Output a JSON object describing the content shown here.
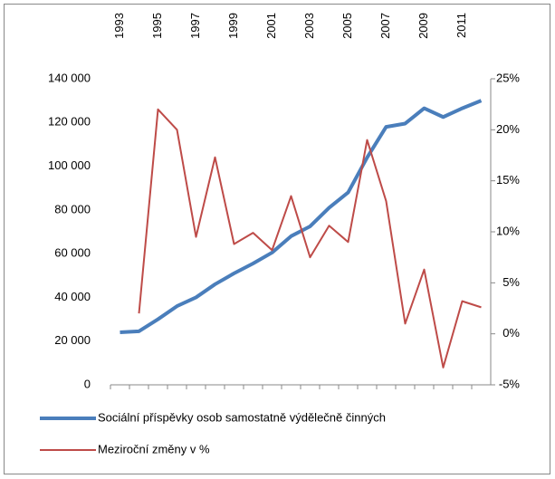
{
  "chart_data": {
    "type": "line",
    "categories": [
      "1993",
      null,
      "1995",
      null,
      "1997",
      null,
      "1999",
      null,
      "2001",
      null,
      "2003",
      null,
      "2005",
      null,
      "2007",
      null,
      "2009",
      null,
      "2011",
      null
    ],
    "series": [
      {
        "name": "Sociální příspěvky osob samostatně výdělečně činných",
        "color": "#4a7ebb",
        "axis": "y",
        "values": [
          24000,
          24500,
          30000,
          36000,
          40000,
          46000,
          51000,
          55500,
          60500,
          68000,
          72500,
          81000,
          88000,
          104000,
          118000,
          119500,
          126500,
          122500,
          126500,
          130000
        ]
      },
      {
        "name": "Meziroční změny v %",
        "color": "#be4b48",
        "axis": "y2",
        "values": [
          null,
          2,
          22,
          20,
          9.5,
          17.3,
          8.8,
          9.9,
          8.2,
          13.5,
          7.5,
          10.6,
          9.0,
          19.0,
          13,
          1.0,
          6.3,
          -3.3,
          3.2,
          2.6
        ]
      }
    ],
    "ylim": [
      0,
      140000
    ],
    "yticks": [
      0,
      {
        "value": 20000,
        "label": "20 000"
      },
      {
        "value": 40000,
        "label": "40 000"
      },
      {
        "value": 60000,
        "label": "60 000"
      },
      {
        "value": 80000,
        "label": "80 000"
      },
      {
        "value": 100000,
        "label": "100 000"
      },
      {
        "value": 120000,
        "label": "120 000"
      },
      {
        "value": 140000,
        "label": "140 000"
      }
    ],
    "y2lim": [
      -5,
      25
    ],
    "y2ticks": [
      {
        "value": -5,
        "label": "-5%"
      },
      {
        "value": 0,
        "label": "0%"
      },
      {
        "value": 5,
        "label": "5%"
      },
      {
        "value": 10,
        "label": "10%"
      },
      {
        "value": 15,
        "label": "15%"
      },
      {
        "value": 20,
        "label": "20%"
      },
      {
        "value": 25,
        "label": "25%"
      }
    ],
    "grid": false,
    "legend": "bottom"
  }
}
